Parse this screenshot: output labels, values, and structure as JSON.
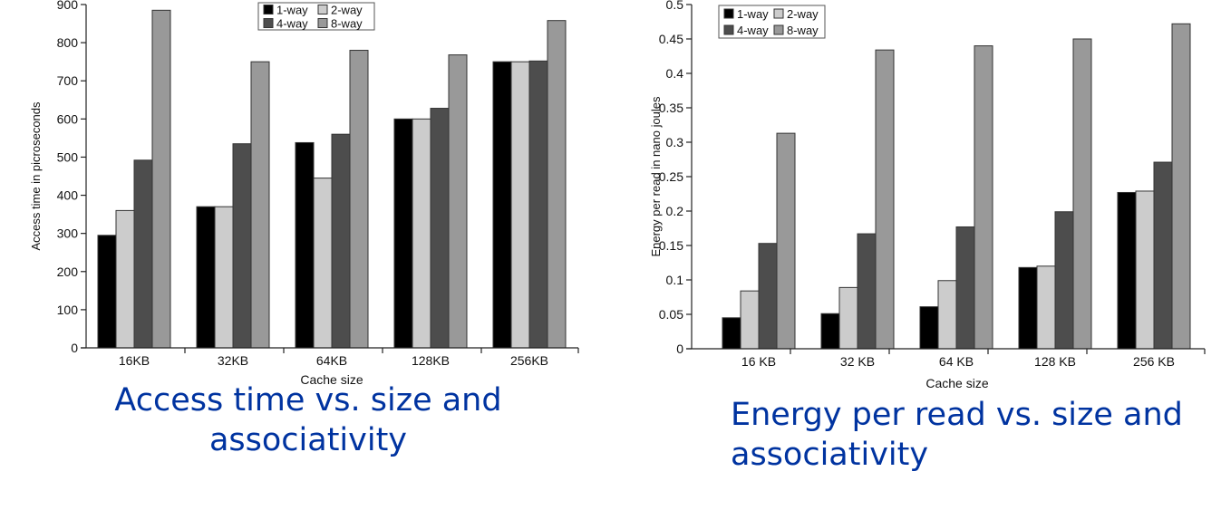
{
  "chart_data": [
    {
      "type": "bar",
      "title": "",
      "caption": "Access time vs. size and associativity",
      "xlabel": "Cache size",
      "ylabel": "Access time in picroseconds",
      "categories": [
        "16KB",
        "32KB",
        "64KB",
        "128KB",
        "256KB"
      ],
      "ylim": [
        0,
        900
      ],
      "yticks": [
        0,
        100,
        200,
        300,
        400,
        500,
        600,
        700,
        800,
        900
      ],
      "ytick_labels": [
        "0",
        "100",
        "200",
        "300",
        "400",
        "500",
        "600",
        "700",
        "800",
        "900"
      ],
      "grid": false,
      "legend": {
        "position": "top-center",
        "entries": [
          "1-way",
          "2-way",
          "4-way",
          "8-way"
        ]
      },
      "series": [
        {
          "name": "1-way",
          "color": "#000000",
          "values": [
            295,
            370,
            538,
            600,
            750
          ]
        },
        {
          "name": "2-way",
          "color": "#cccccc",
          "values": [
            360,
            370,
            445,
            600,
            750
          ]
        },
        {
          "name": "4-way",
          "color": "#4d4d4d",
          "values": [
            492,
            535,
            560,
            628,
            752
          ]
        },
        {
          "name": "8-way",
          "color": "#999999",
          "values": [
            885,
            750,
            780,
            768,
            858
          ]
        }
      ]
    },
    {
      "type": "bar",
      "title": "",
      "caption": "Energy per read vs. size and associativity",
      "xlabel": "Cache size",
      "ylabel": "Energy per read in nano joules",
      "categories": [
        "16 KB",
        "32 KB",
        "64 KB",
        "128 KB",
        "256 KB"
      ],
      "ylim": [
        0,
        0.5
      ],
      "yticks": [
        0,
        0.05,
        0.1,
        0.15,
        0.2,
        0.25,
        0.3,
        0.35,
        0.4,
        0.45,
        0.5
      ],
      "ytick_labels": [
        "0",
        "0.05",
        "0.1",
        "0.15",
        "0.2",
        "0.25",
        "0.3",
        "0.35",
        "0.4",
        "0.45",
        "0.5"
      ],
      "grid": false,
      "legend": {
        "position": "top-left",
        "entries": [
          "1-way",
          "2-way",
          "4-way",
          "8-way"
        ]
      },
      "series": [
        {
          "name": "1-way",
          "color": "#000000",
          "values": [
            0.045,
            0.051,
            0.061,
            0.118,
            0.227
          ]
        },
        {
          "name": "2-way",
          "color": "#cccccc",
          "values": [
            0.084,
            0.089,
            0.099,
            0.12,
            0.229
          ]
        },
        {
          "name": "4-way",
          "color": "#4d4d4d",
          "values": [
            0.153,
            0.167,
            0.177,
            0.199,
            0.271
          ]
        },
        {
          "name": "8-way",
          "color": "#999999",
          "values": [
            0.313,
            0.434,
            0.44,
            0.45,
            0.472
          ]
        }
      ]
    }
  ]
}
